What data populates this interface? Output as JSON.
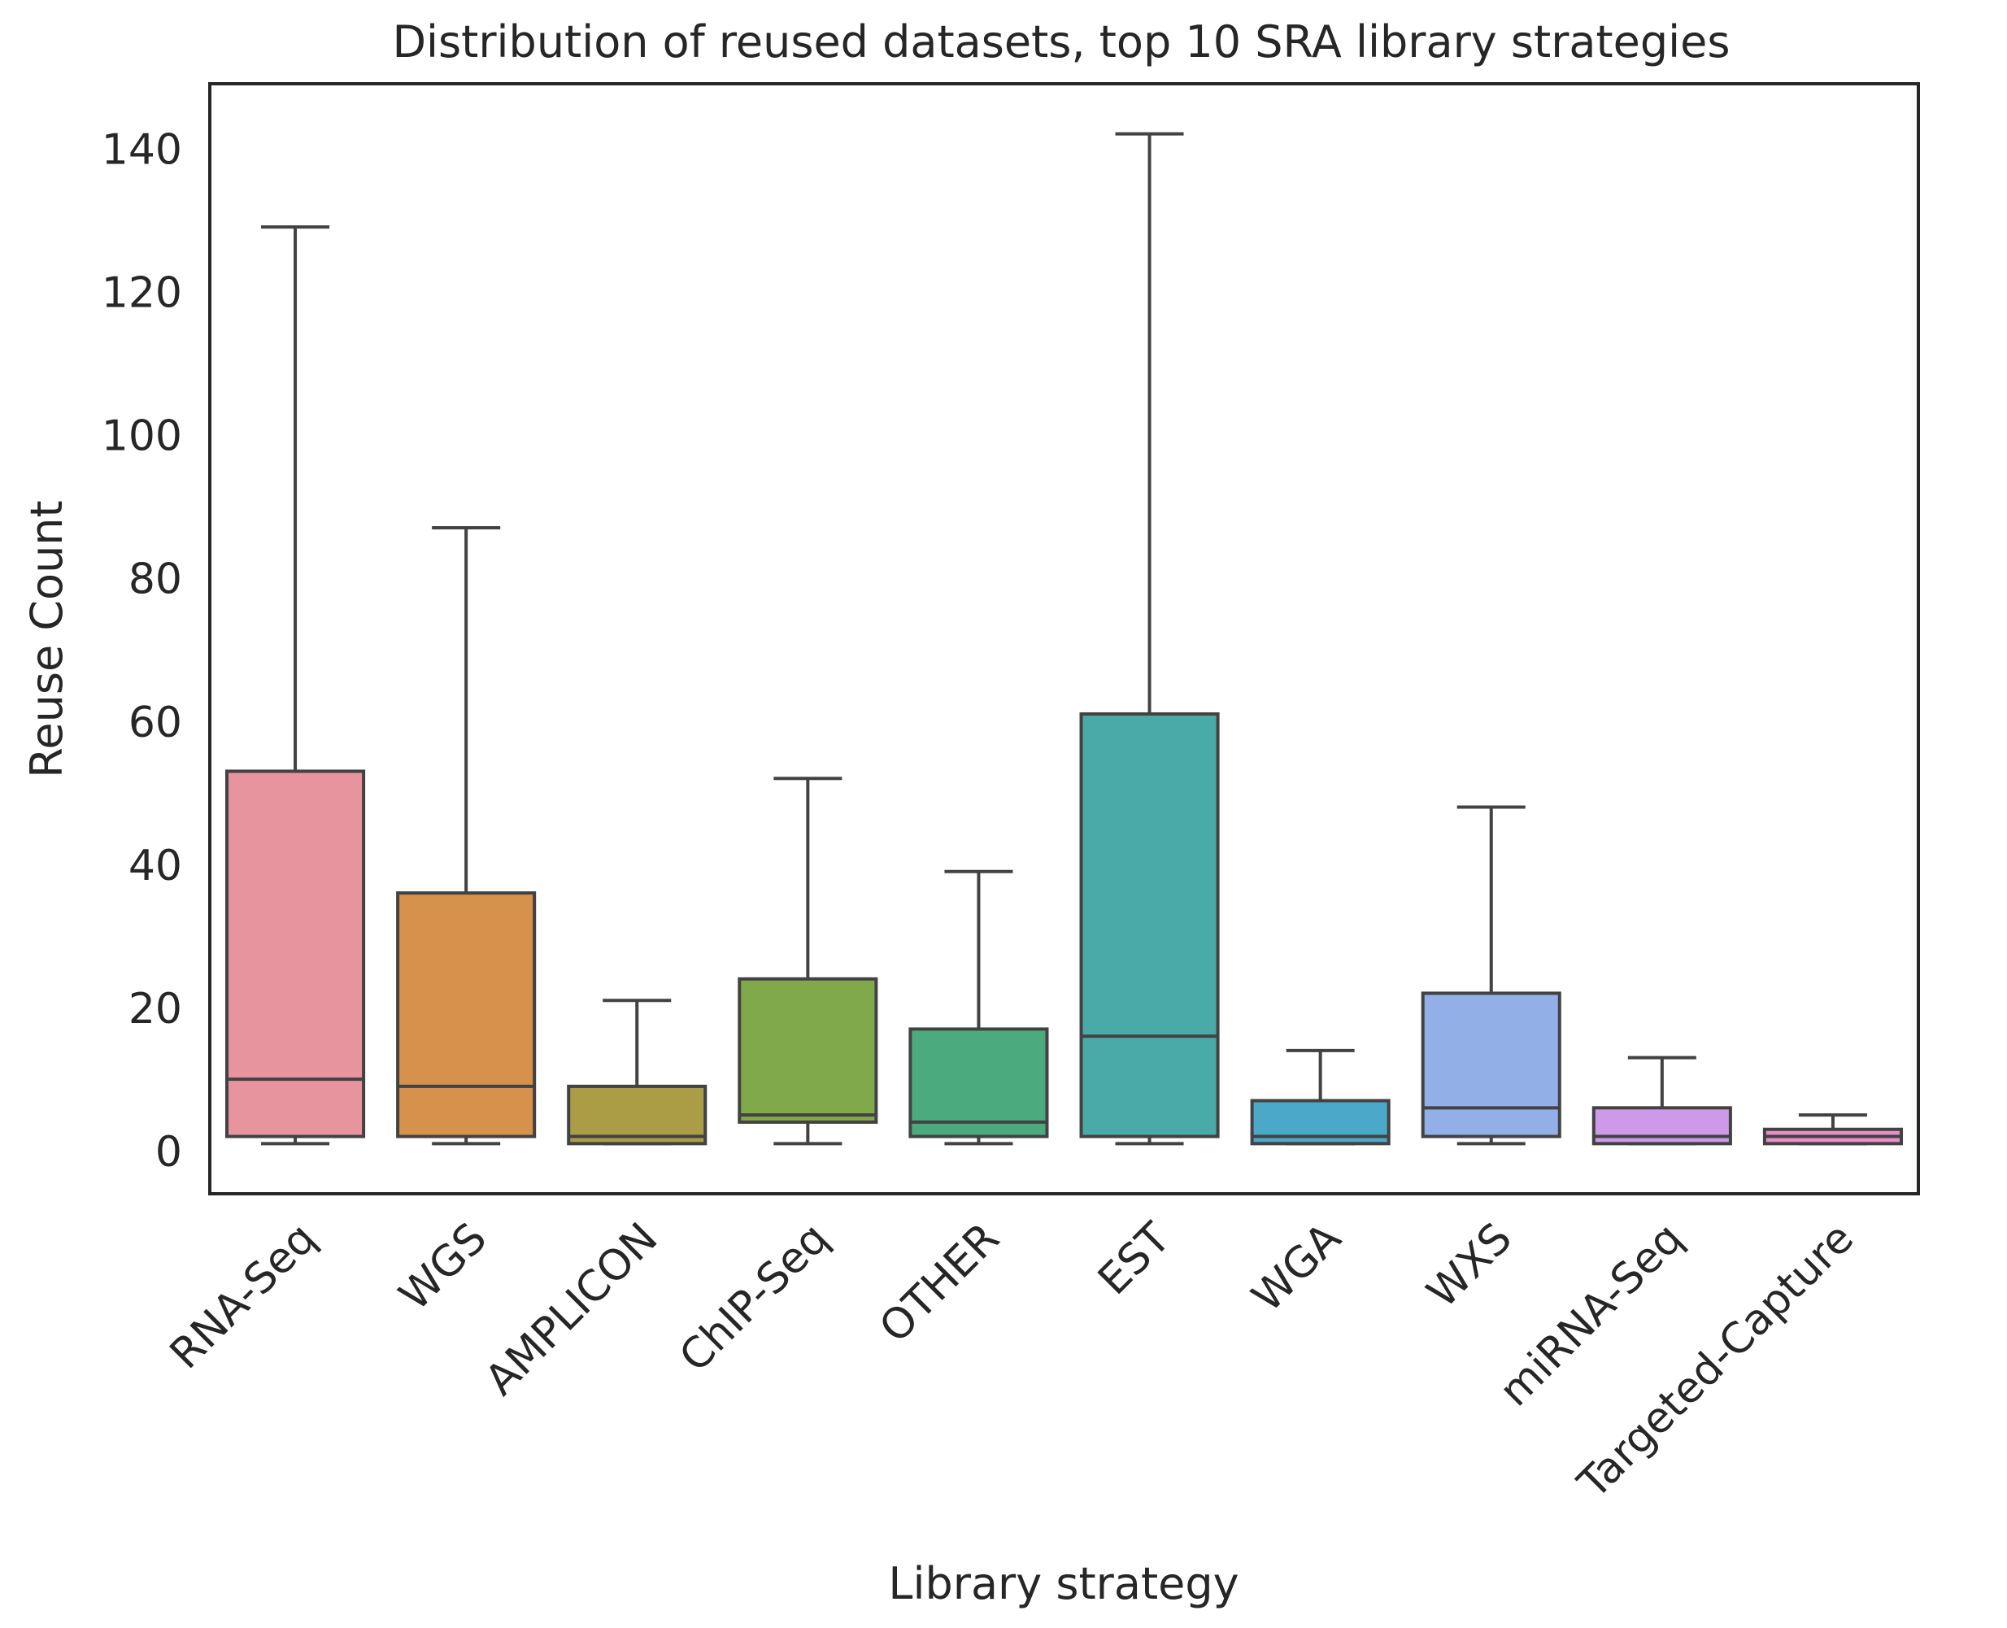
{
  "chart_data": {
    "type": "box",
    "title": "Distribution of reused datasets, top 10 SRA library strategies",
    "xlabel": "Library strategy",
    "ylabel": "Reuse Count",
    "ylim": [
      -6,
      149
    ],
    "yticks": [
      0,
      20,
      40,
      60,
      80,
      100,
      120,
      140
    ],
    "ytick_labels": [
      "0",
      "20",
      "40",
      "60",
      "80",
      "100",
      "120",
      "140"
    ],
    "grid": false,
    "categories": [
      "RNA-Seq",
      "WGS",
      "AMPLICON",
      "ChIP-Seq",
      "OTHER",
      "EST",
      "WGA",
      "WXS",
      "miRNA-Seq",
      "Targeted-Capture"
    ],
    "boxes": [
      {
        "category": "RNA-Seq",
        "whisker_low": 1,
        "q1": 2,
        "median": 10,
        "q3": 53,
        "whisker_high": 129,
        "color": "#e8949f"
      },
      {
        "category": "WGS",
        "whisker_low": 1,
        "q1": 2,
        "median": 9,
        "q3": 36,
        "whisker_high": 87,
        "color": "#d6924d"
      },
      {
        "category": "AMPLICON",
        "whisker_low": 1,
        "q1": 1,
        "median": 2,
        "q3": 9,
        "whisker_high": 21,
        "color": "#ab9c46"
      },
      {
        "category": "ChIP-Seq",
        "whisker_low": 1,
        "q1": 4,
        "median": 5,
        "q3": 24,
        "whisker_high": 52,
        "color": "#80a94a"
      },
      {
        "category": "OTHER",
        "whisker_low": 1,
        "q1": 2,
        "median": 4,
        "q3": 17,
        "whisker_high": 39,
        "color": "#4bab7f"
      },
      {
        "category": "EST",
        "whisker_low": 1,
        "q1": 2,
        "median": 16,
        "q3": 61,
        "whisker_high": 142,
        "color": "#4aaaa7"
      },
      {
        "category": "WGA",
        "whisker_low": 1,
        "q1": 1,
        "median": 2,
        "q3": 7,
        "whisker_high": 14,
        "color": "#4aa8c9"
      },
      {
        "category": "WXS",
        "whisker_low": 1,
        "q1": 2,
        "median": 6,
        "q3": 22,
        "whisker_high": 48,
        "color": "#93afe7"
      },
      {
        "category": "miRNA-Seq",
        "whisker_low": 1,
        "q1": 1,
        "median": 2,
        "q3": 6,
        "whisker_high": 13,
        "color": "#cf99ea"
      },
      {
        "category": "Targeted-Capture",
        "whisker_low": 1,
        "q1": 1,
        "median": 2,
        "q3": 3,
        "whisker_high": 5,
        "color": "#e88fc8"
      }
    ]
  }
}
